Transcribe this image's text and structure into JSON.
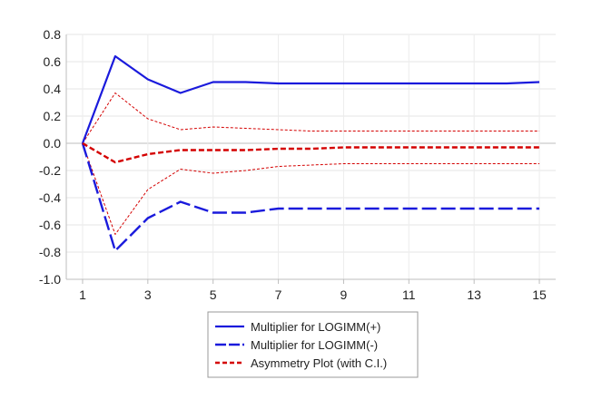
{
  "chart_data": {
    "type": "line",
    "title": "",
    "xlabel": "",
    "ylabel": "",
    "x": [
      1,
      2,
      3,
      4,
      5,
      6,
      7,
      8,
      9,
      10,
      11,
      12,
      13,
      14,
      15
    ],
    "xlim": [
      0.5,
      15.5
    ],
    "ylim": [
      -1.0,
      0.8
    ],
    "x_ticks": [
      1,
      3,
      5,
      7,
      9,
      11,
      13,
      15
    ],
    "y_ticks": [
      -1.0,
      -0.8,
      -0.6,
      -0.4,
      -0.2,
      0.0,
      0.2,
      0.4,
      0.6,
      0.8
    ],
    "y_tick_labels": [
      "-1.0",
      "-0.8",
      "-0.6",
      "-0.4",
      "-0.2",
      "0.0",
      "0.2",
      "0.4",
      "0.6",
      "0.8"
    ],
    "grid": true,
    "legend_position": "bottom-center",
    "series": [
      {
        "name": "Multiplier for LOGIMM(+)",
        "role": "positive",
        "color": "#1a1adc",
        "style": "solid",
        "in_legend": true,
        "values": [
          0.0,
          0.64,
          0.47,
          0.37,
          0.45,
          0.45,
          0.44,
          0.44,
          0.44,
          0.44,
          0.44,
          0.44,
          0.44,
          0.44,
          0.45
        ]
      },
      {
        "name": "Multiplier for LOGIMM(-)",
        "role": "negative",
        "color": "#1a1adc",
        "style": "longdash",
        "in_legend": true,
        "values": [
          0.0,
          -0.79,
          -0.55,
          -0.43,
          -0.51,
          -0.51,
          -0.48,
          -0.48,
          -0.48,
          -0.48,
          -0.48,
          -0.48,
          -0.48,
          -0.48,
          -0.48
        ]
      },
      {
        "name": "Asymmetry Plot (with C.I.)",
        "role": "asymmetry",
        "color": "#d40000",
        "style": "dashed",
        "in_legend": true,
        "values": [
          0.0,
          -0.14,
          -0.08,
          -0.05,
          -0.05,
          -0.05,
          -0.04,
          -0.04,
          -0.03,
          -0.03,
          -0.03,
          -0.03,
          -0.03,
          -0.03,
          -0.03
        ]
      },
      {
        "name": "",
        "role": "ci-upper",
        "color": "#d40000",
        "style": "thin-dashed",
        "in_legend": false,
        "values": [
          0.0,
          0.37,
          0.18,
          0.1,
          0.12,
          0.11,
          0.1,
          0.09,
          0.09,
          0.09,
          0.09,
          0.09,
          0.09,
          0.09,
          0.09
        ]
      },
      {
        "name": "",
        "role": "ci-lower",
        "color": "#d40000",
        "style": "thin-dashed",
        "in_legend": false,
        "values": [
          0.0,
          -0.67,
          -0.34,
          -0.19,
          -0.22,
          -0.2,
          -0.17,
          -0.16,
          -0.15,
          -0.15,
          -0.15,
          -0.15,
          -0.15,
          -0.15,
          -0.15
        ]
      }
    ]
  }
}
